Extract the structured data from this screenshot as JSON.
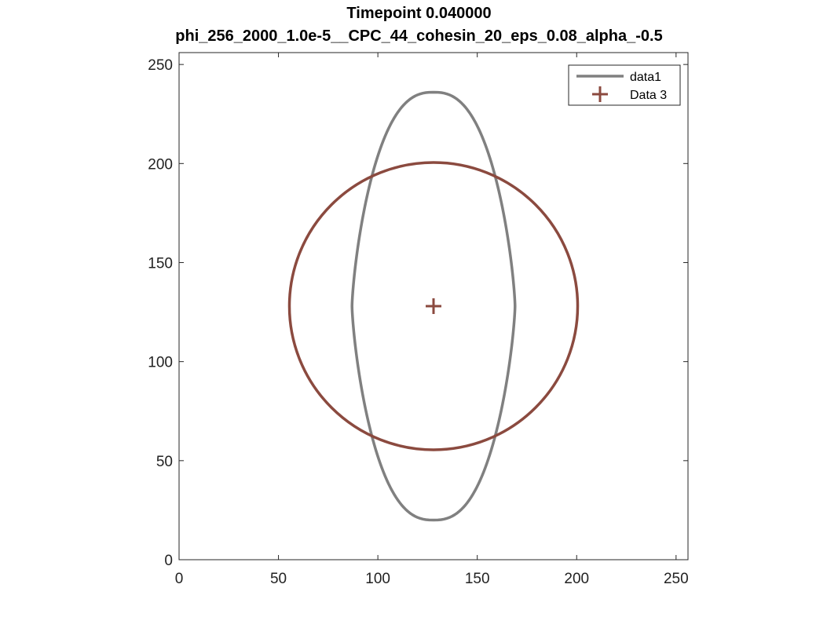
{
  "chart_data": {
    "type": "line",
    "title": "Timepoint 0.040000",
    "subtitle": "phi_256_2000_1.0e-5__CPC_44_cohesin_20_eps_0.08_alpha_-0.5",
    "xlim": [
      0,
      256
    ],
    "ylim": [
      0,
      256
    ],
    "xticks": [
      0,
      50,
      100,
      150,
      200,
      250
    ],
    "yticks": [
      0,
      50,
      100,
      150,
      200,
      250
    ],
    "grid": false,
    "legend_placement": "top-right",
    "series": [
      {
        "name": "data1",
        "kind": "closed-curve",
        "shape": "pointed-lens",
        "color": "#808080",
        "center": [
          128,
          128
        ],
        "x_range": [
          87,
          169
        ],
        "y_range": [
          20,
          236
        ]
      },
      {
        "name": "Data 3",
        "kind": "circle-with-center-marker",
        "color": "#8B4A3F",
        "center": [
          128,
          128
        ],
        "radius": 72.5,
        "marker": "plus"
      }
    ]
  }
}
